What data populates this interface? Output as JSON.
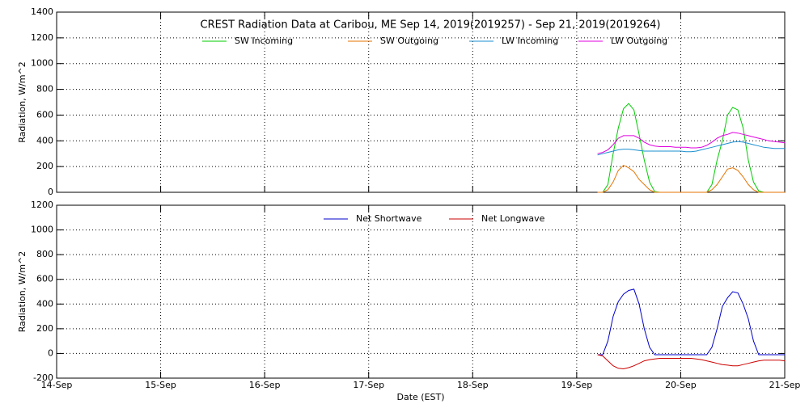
{
  "chart_data": [
    {
      "type": "line",
      "title": "CREST Radiation Data at Caribou, ME   Sep 14, 2019(2019257) - Sep 21, 2019(2019264)",
      "ylabel": "Radiation, W/m^2",
      "xlim": [
        14,
        21
      ],
      "xticks": [
        14,
        15,
        16,
        17,
        18,
        19,
        20,
        21
      ],
      "ylim": [
        0,
        1400
      ],
      "yticks": [
        0,
        200,
        400,
        600,
        800,
        1000,
        1200,
        1400
      ],
      "grid": true,
      "legend": "top",
      "x": [
        19.2,
        19.25,
        19.3,
        19.35,
        19.4,
        19.45,
        19.5,
        19.55,
        19.6,
        19.65,
        19.7,
        19.75,
        19.8,
        19.85,
        19.9,
        19.95,
        20,
        20.05,
        20.1,
        20.15,
        20.2,
        20.25,
        20.3,
        20.35,
        20.4,
        20.45,
        20.5,
        20.55,
        20.6,
        20.65,
        20.7,
        20.75,
        20.8,
        20.85,
        20.9,
        20.95,
        21
      ],
      "series": [
        {
          "name": "SW Incoming",
          "color": "#00cc00",
          "values": [
            0,
            0,
            60,
            300,
            500,
            650,
            690,
            640,
            450,
            250,
            80,
            5,
            0,
            0,
            0,
            0,
            0,
            0,
            0,
            0,
            0,
            0,
            60,
            250,
            400,
            600,
            660,
            640,
            500,
            250,
            80,
            10,
            0,
            0,
            0,
            0,
            0
          ]
        },
        {
          "name": "SW Outgoing",
          "color": "#e67300",
          "values": [
            0,
            0,
            20,
            80,
            170,
            210,
            190,
            160,
            100,
            60,
            20,
            0,
            0,
            0,
            0,
            0,
            0,
            0,
            0,
            0,
            0,
            0,
            20,
            60,
            120,
            180,
            190,
            170,
            120,
            60,
            20,
            0,
            0,
            0,
            0,
            0,
            0
          ]
        },
        {
          "name": "LW Incoming",
          "color": "#1a8fd0",
          "values": [
            290,
            300,
            310,
            320,
            330,
            335,
            335,
            330,
            325,
            320,
            320,
            320,
            320,
            320,
            320,
            320,
            320,
            315,
            315,
            320,
            330,
            340,
            350,
            360,
            370,
            380,
            390,
            395,
            390,
            380,
            370,
            360,
            350,
            345,
            340,
            340,
            340
          ]
        },
        {
          "name": "LW Outgoing",
          "color": "#e000e0",
          "values": [
            300,
            310,
            330,
            370,
            420,
            440,
            440,
            440,
            420,
            390,
            370,
            360,
            355,
            355,
            355,
            350,
            350,
            350,
            345,
            345,
            350,
            365,
            390,
            420,
            440,
            450,
            465,
            460,
            450,
            440,
            430,
            420,
            410,
            400,
            395,
            390,
            385
          ]
        }
      ]
    },
    {
      "type": "line",
      "ylabel": "Radiation, W/m^2",
      "xlabel": "Date (EST)",
      "xlim": [
        14,
        21
      ],
      "xticks": [
        {
          "value": 14,
          "label": "14-Sep"
        },
        {
          "value": 15,
          "label": "15-Sep"
        },
        {
          "value": 16,
          "label": "16-Sep"
        },
        {
          "value": 17,
          "label": "17-Sep"
        },
        {
          "value": 18,
          "label": "18-Sep"
        },
        {
          "value": 19,
          "label": "19-Sep"
        },
        {
          "value": 20,
          "label": "20-Sep"
        },
        {
          "value": 21,
          "label": "21-Sep"
        }
      ],
      "ylim": [
        -200,
        1200
      ],
      "yticks": [
        -200,
        0,
        200,
        400,
        600,
        800,
        1000,
        1200
      ],
      "grid": true,
      "legend": "top",
      "x": [
        19.2,
        19.25,
        19.3,
        19.35,
        19.4,
        19.45,
        19.5,
        19.55,
        19.6,
        19.65,
        19.7,
        19.75,
        19.8,
        19.85,
        19.9,
        19.95,
        20,
        20.05,
        20.1,
        20.15,
        20.2,
        20.25,
        20.3,
        20.35,
        20.4,
        20.45,
        20.5,
        20.55,
        20.6,
        20.65,
        20.7,
        20.75,
        20.8,
        20.85,
        20.9,
        20.95,
        21
      ],
      "series": [
        {
          "name": "Net Shortwave",
          "color": "#0000cc",
          "values": [
            -10,
            -10,
            100,
            300,
            420,
            480,
            510,
            520,
            400,
            200,
            50,
            -10,
            -10,
            -10,
            -10,
            -10,
            -10,
            -10,
            -10,
            -10,
            -10,
            -10,
            50,
            200,
            380,
            450,
            500,
            490,
            400,
            280,
            100,
            -10,
            -10,
            -10,
            -10,
            -10,
            -10
          ]
        },
        {
          "name": "Net Longwave",
          "color": "#cc0000",
          "values": [
            -10,
            -20,
            -60,
            -100,
            -120,
            -125,
            -115,
            -100,
            -80,
            -60,
            -50,
            -45,
            -40,
            -40,
            -40,
            -40,
            -40,
            -40,
            -40,
            -45,
            -50,
            -60,
            -70,
            -80,
            -90,
            -95,
            -100,
            -100,
            -90,
            -80,
            -70,
            -60,
            -55,
            -55,
            -55,
            -55,
            -60
          ]
        }
      ]
    }
  ]
}
